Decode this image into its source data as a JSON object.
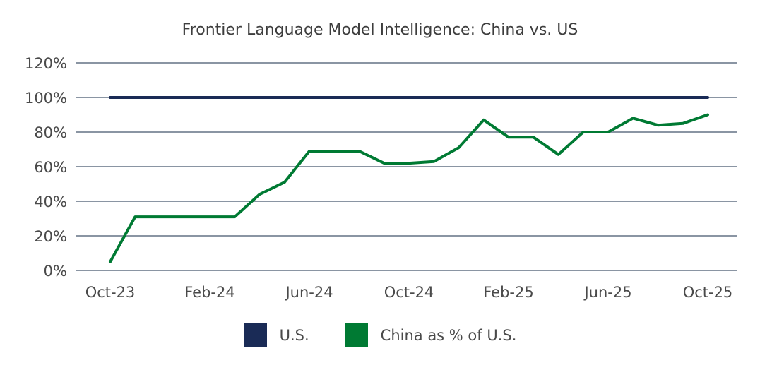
{
  "chart_data": {
    "type": "line",
    "title": "Frontier Language Model Intelligence: China vs. US",
    "xlabel": "",
    "ylabel": "",
    "ylim": [
      0,
      120
    ],
    "yticks": [
      "0%",
      "20%",
      "40%",
      "60%",
      "80%",
      "100%",
      "120%"
    ],
    "xticks": [
      "Oct-23",
      "Feb-24",
      "Jun-24",
      "Oct-24",
      "Feb-25",
      "Jun-25",
      "Oct-25"
    ],
    "grid": true,
    "legend_position": "bottom",
    "x": [
      "Oct-23",
      "Nov-23",
      "Dec-23",
      "Jan-24",
      "Feb-24",
      "Mar-24",
      "Apr-24",
      "May-24",
      "Jun-24",
      "Jul-24",
      "Aug-24",
      "Sep-24",
      "Oct-24",
      "Nov-24",
      "Dec-24",
      "Jan-25",
      "Feb-25",
      "Mar-25",
      "Apr-25",
      "May-25",
      "Jun-25",
      "Jul-25",
      "Aug-25",
      "Sep-25",
      "Oct-25"
    ],
    "series": [
      {
        "name": "U.S.",
        "color": "#1a2b56",
        "values": [
          100,
          100,
          100,
          100,
          100,
          100,
          100,
          100,
          100,
          100,
          100,
          100,
          100,
          100,
          100,
          100,
          100,
          100,
          100,
          100,
          100,
          100,
          100,
          100,
          100
        ]
      },
      {
        "name": "China as % of U.S.",
        "color": "#007a33",
        "values": [
          5,
          31,
          31,
          31,
          31,
          31,
          44,
          51,
          69,
          69,
          69,
          62,
          62,
          63,
          71,
          87,
          77,
          77,
          67,
          80,
          80,
          88,
          84,
          85,
          90
        ]
      }
    ]
  },
  "legend": {
    "items": [
      {
        "label": "U.S.",
        "color": "#1a2b56"
      },
      {
        "label": "China as % of U.S.",
        "color": "#007a33"
      }
    ]
  }
}
